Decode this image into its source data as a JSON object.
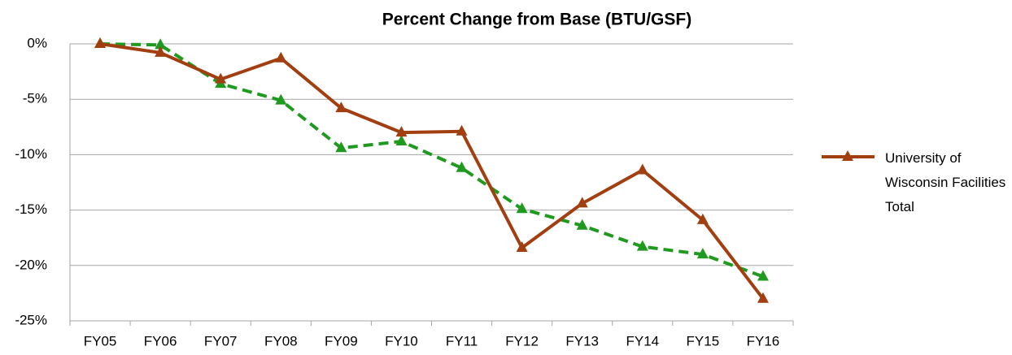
{
  "chart_data": {
    "type": "line",
    "title": "Percent Change from Base (BTU/GSF)",
    "categories": [
      "FY05",
      "FY06",
      "FY07",
      "FY08",
      "FY09",
      "FY10",
      "FY11",
      "FY12",
      "FY13",
      "FY14",
      "FY15",
      "FY16"
    ],
    "series": [
      {
        "name": "University of Wisconsin Facilities Total",
        "color": "#a23f10",
        "dashed": false,
        "values": [
          0,
          -0.8,
          -3.2,
          -1.3,
          -5.8,
          -8.0,
          -7.9,
          -18.4,
          -14.4,
          -11.4,
          -15.9,
          -23.0
        ]
      },
      {
        "color": "#1f9a1f",
        "dashed": true,
        "values": [
          0,
          -0.1,
          -3.6,
          -5.1,
          -9.4,
          -8.8,
          -11.2,
          -14.9,
          -16.4,
          -18.3,
          -19.0,
          -21.0
        ]
      }
    ],
    "ylim": [
      -25,
      0
    ],
    "yticks": [
      {
        "value": -25,
        "label": "-25%"
      },
      {
        "value": -20,
        "label": "-20%"
      },
      {
        "value": -15,
        "label": "-15%"
      },
      {
        "value": -10,
        "label": "-10%"
      },
      {
        "value": -5,
        "label": "-5%"
      },
      {
        "value": 0,
        "label": "0%"
      }
    ],
    "grid": true,
    "legend": "right"
  }
}
